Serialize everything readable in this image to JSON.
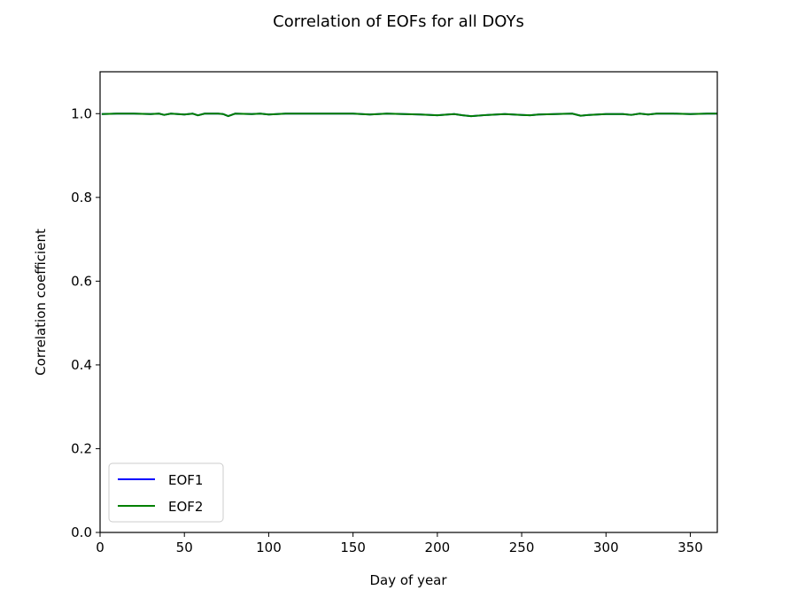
{
  "chart_data": {
    "type": "line",
    "title": "Correlation of EOFs for all DOYs",
    "xlabel": "Day of year",
    "ylabel": "Correlation coefficient",
    "xlim": [
      0,
      366
    ],
    "ylim": [
      0.0,
      1.1
    ],
    "xticks": [
      0,
      50,
      100,
      150,
      200,
      250,
      300,
      350
    ],
    "yticks": [
      0.0,
      0.2,
      0.4,
      0.6,
      0.8,
      1.0
    ],
    "ytick_labels": [
      "0.0",
      "0.2",
      "0.4",
      "0.6",
      "0.8",
      "1.0"
    ],
    "grid": false,
    "legend": "lower-left",
    "x": [
      1,
      10,
      20,
      30,
      35,
      38,
      42,
      50,
      55,
      58,
      62,
      70,
      73,
      76,
      80,
      90,
      95,
      100,
      110,
      120,
      140,
      150,
      160,
      170,
      180,
      190,
      200,
      210,
      215,
      220,
      230,
      240,
      250,
      255,
      260,
      270,
      280,
      285,
      290,
      300,
      310,
      315,
      320,
      325,
      330,
      340,
      350,
      360,
      366
    ],
    "series": [
      {
        "name": "EOF1",
        "color": "#0000ff",
        "values": [
          0.999,
          1.0,
          1.0,
          0.999,
          1.0,
          0.997,
          1.0,
          0.998,
          1.0,
          0.996,
          1.0,
          1.0,
          0.999,
          0.994,
          1.0,
          0.999,
          1.0,
          0.998,
          1.0,
          1.0,
          1.0,
          1.0,
          0.998,
          1.0,
          0.999,
          0.998,
          0.996,
          0.999,
          0.996,
          0.994,
          0.997,
          0.999,
          0.997,
          0.996,
          0.998,
          0.999,
          1.0,
          0.995,
          0.997,
          0.999,
          0.999,
          0.997,
          1.0,
          0.998,
          1.0,
          1.0,
          0.999,
          1.0,
          1.0
        ]
      },
      {
        "name": "EOF2",
        "color": "#008000",
        "values": [
          0.999,
          1.0,
          1.0,
          0.999,
          1.0,
          0.997,
          1.0,
          0.998,
          1.0,
          0.996,
          1.0,
          1.0,
          0.999,
          0.994,
          1.0,
          0.999,
          1.0,
          0.998,
          1.0,
          1.0,
          1.0,
          1.0,
          0.998,
          1.0,
          0.999,
          0.998,
          0.996,
          0.999,
          0.996,
          0.994,
          0.997,
          0.999,
          0.997,
          0.996,
          0.998,
          0.999,
          1.0,
          0.995,
          0.997,
          0.999,
          0.999,
          0.997,
          1.0,
          0.998,
          1.0,
          1.0,
          0.999,
          1.0,
          1.0
        ]
      }
    ]
  }
}
